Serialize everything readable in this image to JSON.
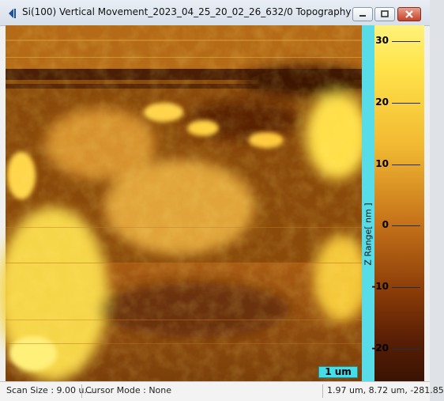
{
  "window": {
    "title": "Si(100) Vertical Movement_2023_04_25_20_02_26_632/0 Topography",
    "buttons": [
      "minimize",
      "maximize",
      "close"
    ],
    "icon": "topography-app-icon"
  },
  "image": {
    "scale_label": "1 um",
    "z_label": "Z Range[ nm ]"
  },
  "colorbar": {
    "ticks": [
      "30",
      "20",
      "10",
      "0",
      "-10",
      "-20"
    ],
    "colors": [
      "#fff27a",
      "#f1b932",
      "#c7741a",
      "#8d3e08",
      "#3a1203"
    ]
  },
  "status": {
    "scan_size": "Scan Size : 9.00 u...",
    "cursor_mode": "Cursor Mode : None",
    "coords": "1.97 um, 8.72 um, -281.85"
  }
}
